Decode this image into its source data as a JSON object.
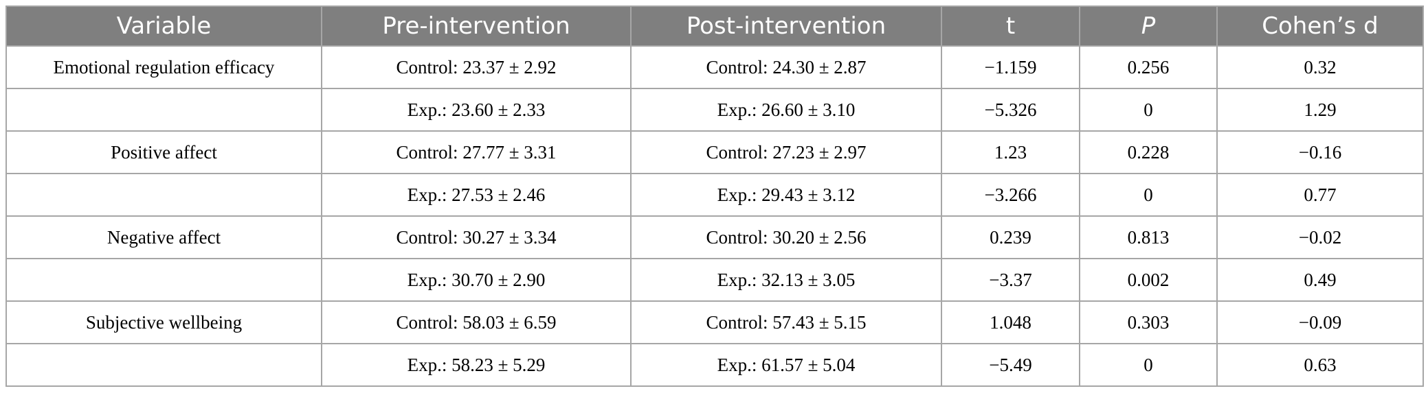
{
  "table": {
    "headers": [
      "Variable",
      "Pre-intervention",
      "Post-intervention",
      "t",
      "P",
      "Cohen’s d"
    ],
    "rows": [
      [
        "Emotional regulation efficacy",
        "Control: 23.37 ± 2.92",
        "Control: 24.30 ± 2.87",
        "−1.159",
        "0.256",
        "0.32"
      ],
      [
        "",
        "Exp.: 23.60 ± 2.33",
        "Exp.: 26.60 ± 3.10",
        "−5.326",
        "0",
        "1.29"
      ],
      [
        "Positive affect",
        "Control: 27.77 ± 3.31",
        "Control: 27.23 ± 2.97",
        "1.23",
        "0.228",
        "−0.16"
      ],
      [
        "",
        "Exp.: 27.53 ± 2.46",
        "Exp.: 29.43 ± 3.12",
        "−3.266",
        "0",
        "0.77"
      ],
      [
        "Negative affect",
        "Control: 30.27 ± 3.34",
        "Control: 30.20 ± 2.56",
        "0.239",
        "0.813",
        "−0.02"
      ],
      [
        "",
        "Exp.: 30.70 ± 2.90",
        "Exp.: 32.13 ± 3.05",
        "−3.37",
        "0.002",
        "0.49"
      ],
      [
        "Subjective wellbeing",
        "Control: 58.03 ± 6.59",
        "Control: 57.43 ± 5.15",
        "1.048",
        "0.303",
        "−0.09"
      ],
      [
        "",
        "Exp.: 58.23 ± 5.29",
        "Exp.: 61.57 ± 5.04",
        "−5.49",
        "0",
        "0.63"
      ]
    ]
  }
}
